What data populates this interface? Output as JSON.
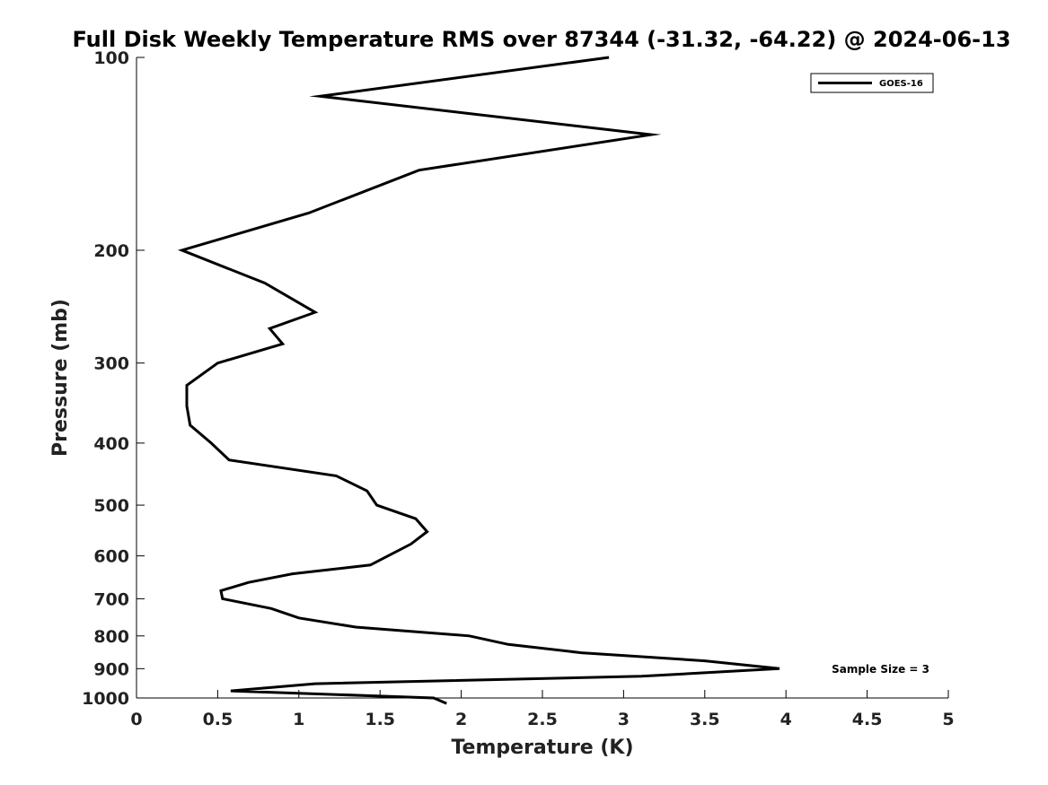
{
  "chart_data": {
    "type": "line",
    "title": "Full Disk Weekly Temperature RMS over 87344 (-31.32, -64.22) @ 2024-06-13",
    "xlabel": "Temperature (K)",
    "ylabel": "Pressure (mb)",
    "xlim": [
      0,
      5
    ],
    "ylim": [
      100,
      1000
    ],
    "y_scale": "log",
    "y_inverted": true,
    "grid": false,
    "legend_position": "top-right",
    "x_ticks": [
      "0",
      "0.5",
      "1",
      "1.5",
      "2",
      "2.5",
      "3",
      "3.5",
      "4",
      "4.5",
      "5"
    ],
    "y_ticks": [
      "100",
      "200",
      "300",
      "400",
      "500",
      "600",
      "700",
      "800",
      "900",
      "1000"
    ],
    "series": [
      {
        "name": "GOES-16",
        "color": "#000000",
        "x": [
          2.91,
          1.13,
          3.17,
          1.74,
          1.06,
          0.28,
          0.79,
          1.1,
          0.82,
          0.9,
          0.5,
          0.31,
          0.31,
          0.33,
          0.46,
          0.57,
          1.23,
          1.42,
          1.48,
          1.72,
          1.79,
          1.69,
          1.55,
          1.44,
          0.96,
          0.69,
          0.52,
          0.53,
          0.83,
          1.0,
          1.35,
          2.05,
          2.29,
          2.74,
          3.5,
          3.96,
          3.11,
          1.1,
          0.58,
          1.83,
          1.91
        ],
        "y": [
          100,
          115,
          132,
          150,
          175,
          200,
          225,
          250,
          265,
          280,
          300,
          325,
          350,
          375,
          400,
          425,
          450,
          475,
          500,
          525,
          550,
          575,
          600,
          620,
          640,
          660,
          680,
          700,
          725,
          750,
          775,
          800,
          825,
          850,
          875,
          900,
          925,
          950,
          975,
          1000,
          1020
        ]
      }
    ],
    "annotations": [
      "Sample Size = 3"
    ]
  }
}
